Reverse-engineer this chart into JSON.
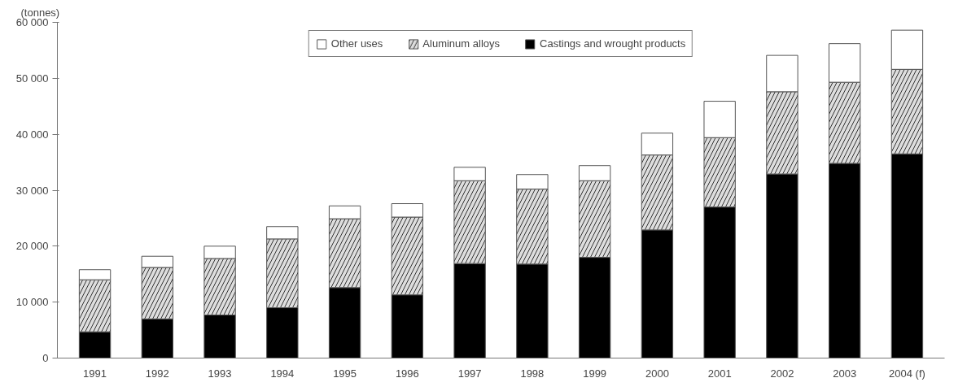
{
  "chart_data": {
    "type": "bar",
    "stacked": true,
    "ylabel": "(tonnes)",
    "categories": [
      "1991",
      "1992",
      "1993",
      "1994",
      "1995",
      "1996",
      "1997",
      "1998",
      "1999",
      "2000",
      "2001",
      "2002",
      "2003",
      "2004 (f)"
    ],
    "series": [
      {
        "name": "Castings and wrought products",
        "color": "#000000",
        "values": [
          4700,
          7000,
          7700,
          9000,
          12600,
          11300,
          16900,
          16800,
          18000,
          22900,
          27000,
          32900,
          34800,
          36500
        ]
      },
      {
        "name": "Aluminum alloys",
        "color": "#dddddd",
        "values": [
          9300,
          9200,
          10100,
          12300,
          12300,
          13900,
          14800,
          13400,
          13700,
          13400,
          12400,
          14700,
          14500,
          15100
        ]
      },
      {
        "name": "Other uses",
        "color": "#ffffff",
        "values": [
          1800,
          2000,
          2200,
          2200,
          2300,
          2400,
          2400,
          2600,
          2700,
          3900,
          6500,
          6500,
          6900,
          7000
        ]
      }
    ],
    "ylim": [
      0,
      60000
    ],
    "yticks": [
      0,
      {
        "value": 10000,
        "label": "10 000"
      },
      {
        "value": 20000,
        "label": "20 000"
      },
      {
        "value": 30000,
        "label": "30 000"
      },
      {
        "value": 40000,
        "label": "40 000"
      },
      {
        "value": 50000,
        "label": "50 000"
      },
      {
        "value": 60000,
        "label": "60 000"
      }
    ],
    "grid": false,
    "legend": "top"
  }
}
